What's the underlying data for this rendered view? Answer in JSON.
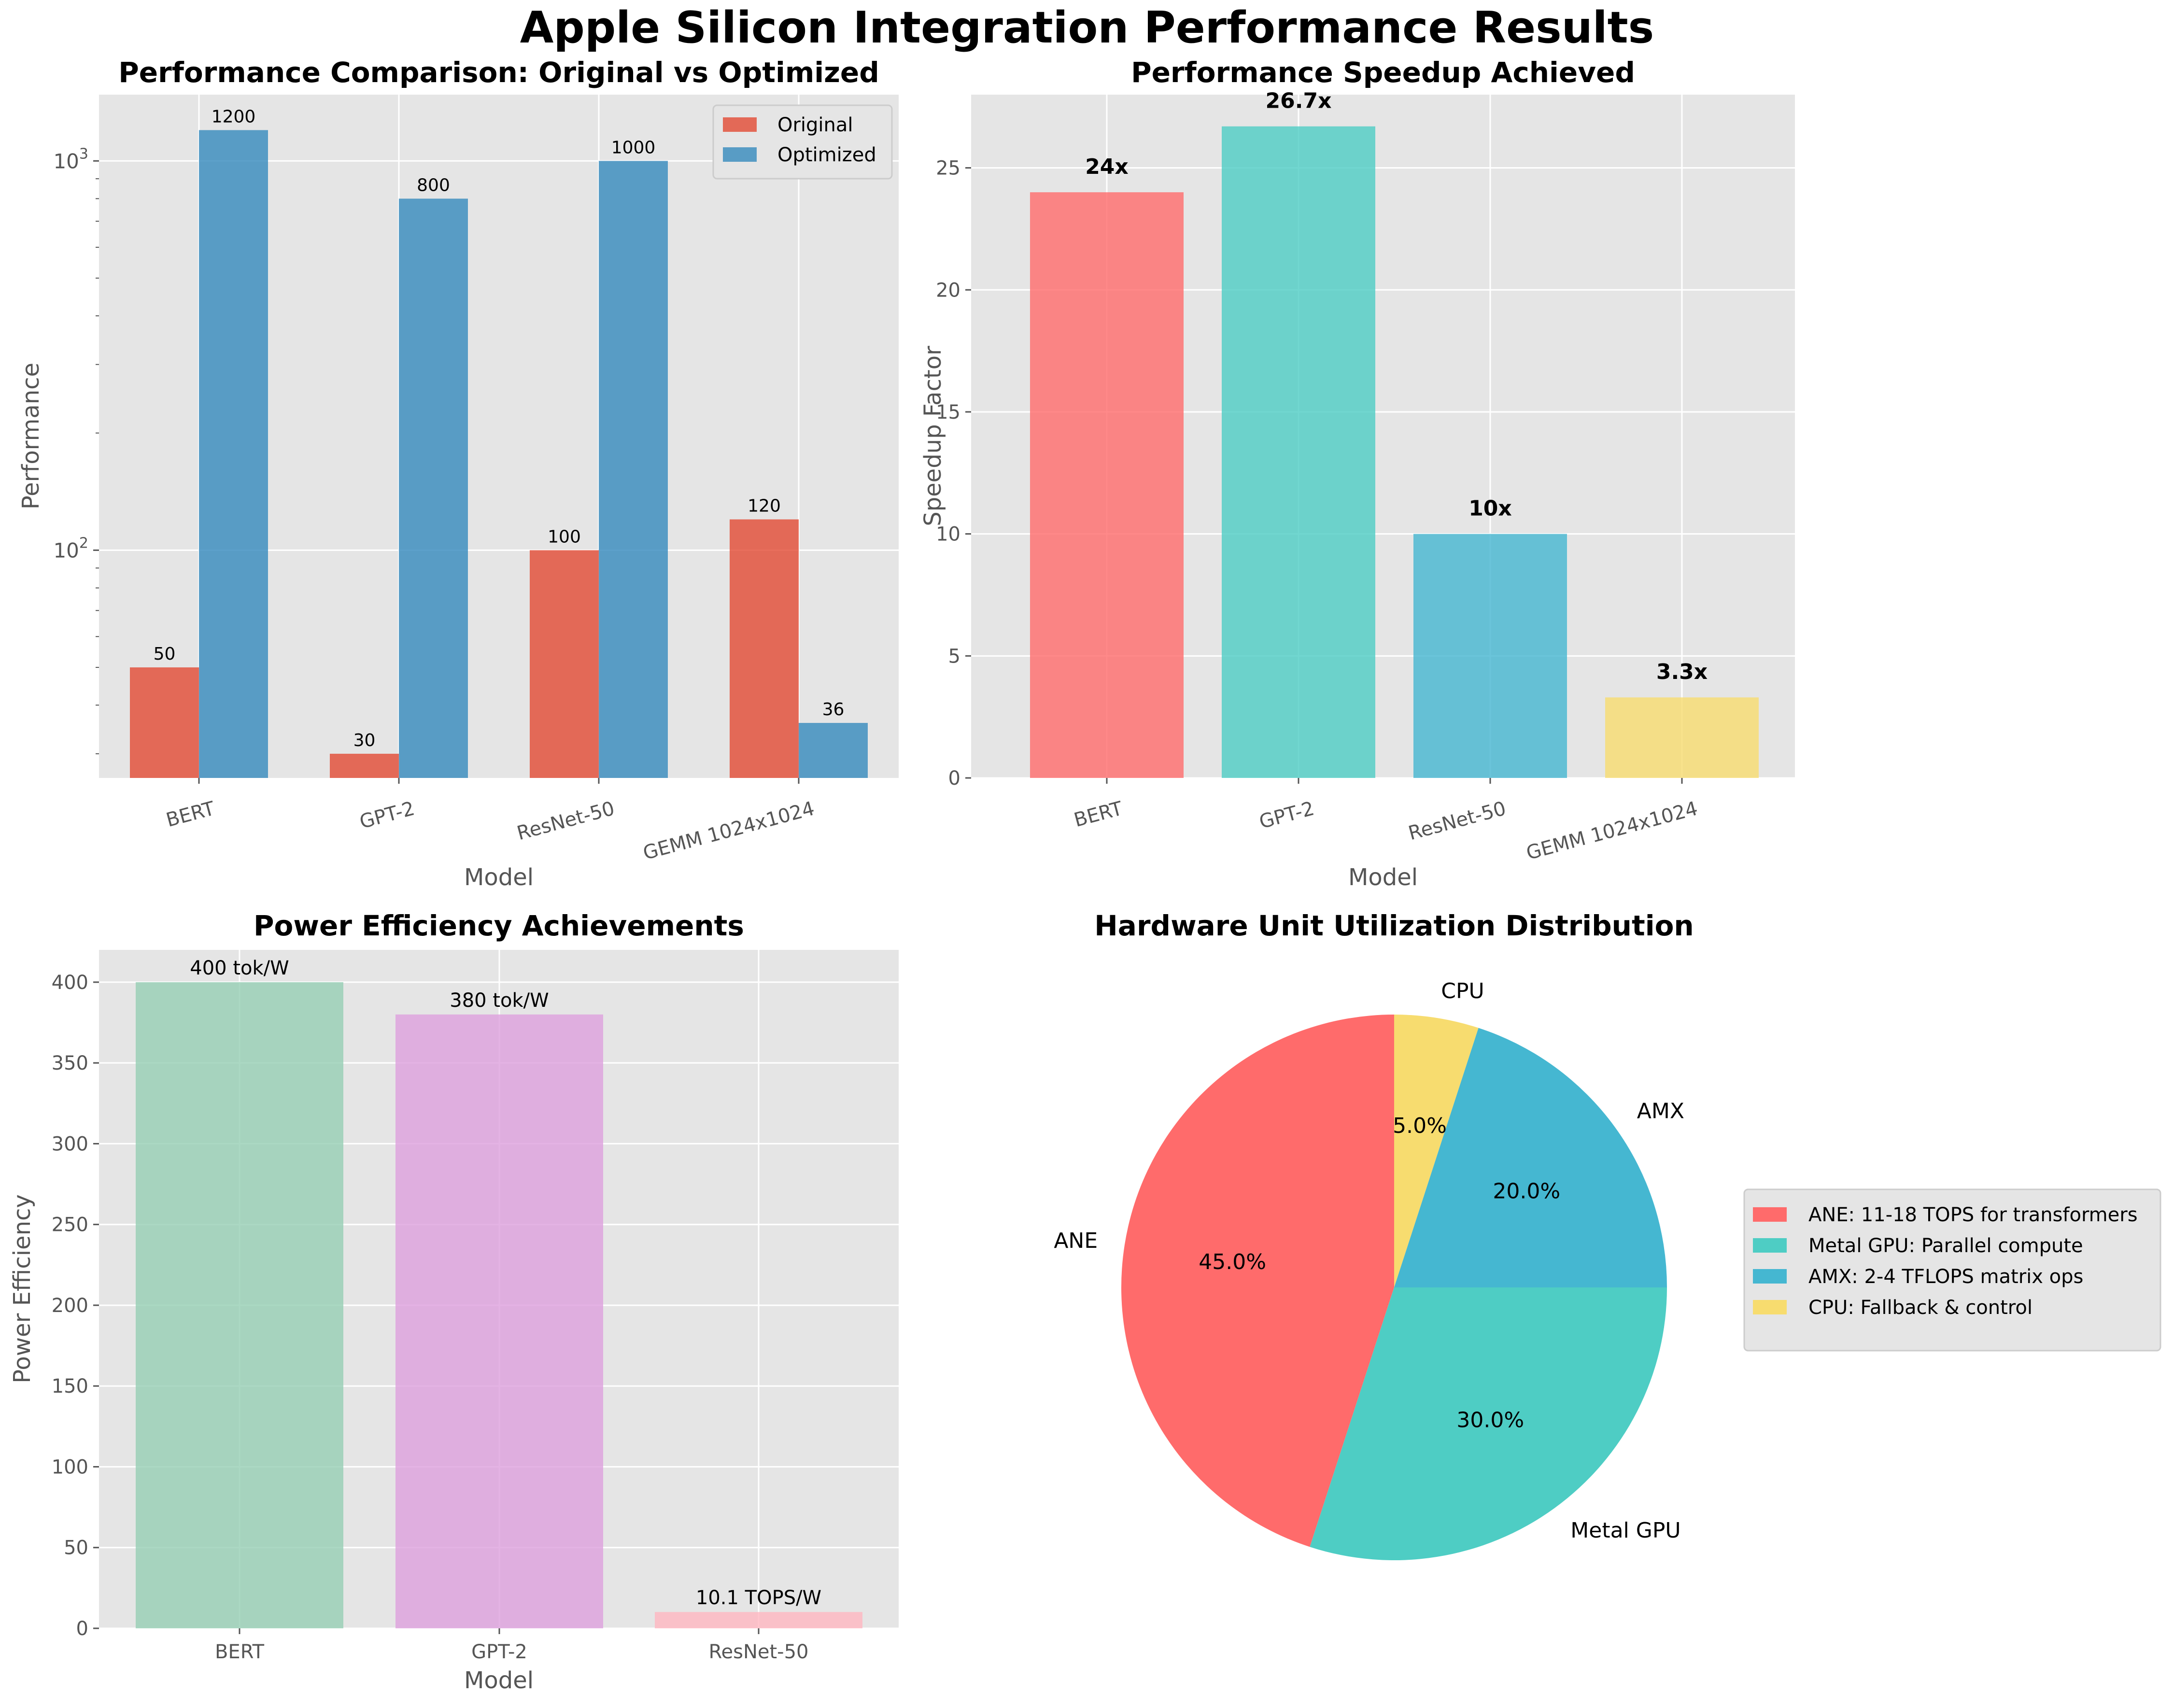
{
  "suptitle": "Apple Silicon Integration Performance Results",
  "chart_data": [
    {
      "type": "bar",
      "title": "Performance Comparison: Original vs Optimized",
      "xlabel": "Model",
      "ylabel": "Performance",
      "yscale": "log",
      "ylim": [
        26,
        1480
      ],
      "yticks": [
        {
          "value": 100,
          "base": "10",
          "exp": "2"
        },
        {
          "value": 1000,
          "base": "10",
          "exp": "3"
        }
      ],
      "categories": [
        "BERT",
        "GPT-2",
        "ResNet-50",
        "GEMM 1024x1024"
      ],
      "series": [
        {
          "name": "Original",
          "color": "#e24a33",
          "values": [
            50,
            30,
            100,
            120
          ]
        },
        {
          "name": "Optimized",
          "color": "#348abd",
          "values": [
            1200,
            800,
            1000,
            36
          ]
        }
      ],
      "legend": "top-right",
      "grid": true
    },
    {
      "type": "bar",
      "title": "Performance Speedup Achieved",
      "xlabel": "Model",
      "ylabel": "Speedup Factor",
      "ylim": [
        0,
        28
      ],
      "yticks": [
        0,
        5,
        10,
        15,
        20,
        25
      ],
      "categories": [
        "BERT",
        "GPT-2",
        "ResNet-50",
        "GEMM 1024x1024"
      ],
      "values": [
        24,
        26.7,
        10,
        3.3
      ],
      "labels": [
        "24x",
        "26.7x",
        "10x",
        "3.3x"
      ],
      "colors": [
        "#ff6b6b",
        "#4ecdc4",
        "#45b7d1",
        "#f7dc6f"
      ],
      "grid": true
    },
    {
      "type": "bar",
      "title": "Power Efficiency Achievements",
      "xlabel": "Model",
      "ylabel": "Power Efficiency",
      "ylim": [
        0,
        420
      ],
      "yticks": [
        0,
        50,
        100,
        150,
        200,
        250,
        300,
        350,
        400
      ],
      "categories": [
        "BERT",
        "GPT-2",
        "ResNet-50"
      ],
      "values": [
        400,
        380,
        10.1
      ],
      "labels": [
        "400 tok/W",
        "380 tok/W",
        "10.1 TOPS/W"
      ],
      "colors": [
        "#96ceb4",
        "#dda0dd",
        "#ffb6c1"
      ],
      "grid": true
    },
    {
      "type": "pie",
      "title": "Hardware Unit Utilization Distribution",
      "slices": [
        {
          "label": "ANE",
          "value": 45.0,
          "pct": "45.0%",
          "color": "#ff6b6b",
          "legend": "ANE: 11-18 TOPS for transformers"
        },
        {
          "label": "Metal GPU",
          "value": 30.0,
          "pct": "30.0%",
          "color": "#4ecdc4",
          "legend": "Metal GPU: Parallel compute"
        },
        {
          "label": "AMX",
          "value": 20.0,
          "pct": "20.0%",
          "color": "#45b7d1",
          "legend": "AMX: 2-4 TFLOPS matrix ops"
        },
        {
          "label": "CPU",
          "value": 5.0,
          "pct": "5.0%",
          "color": "#f7dc6f",
          "legend": "CPU: Fallback & control"
        }
      ],
      "legend": "center-right"
    }
  ]
}
